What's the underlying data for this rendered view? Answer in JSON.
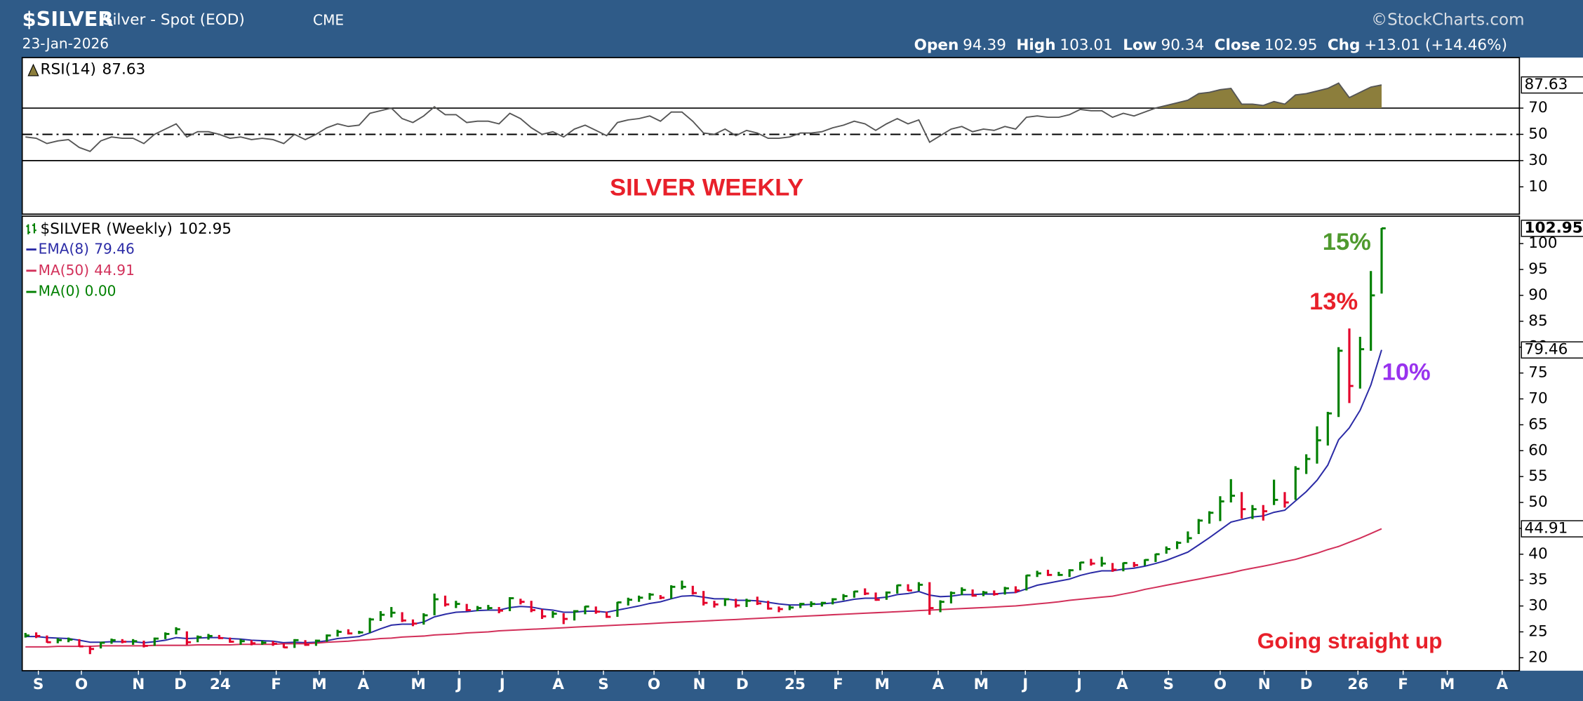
{
  "header": {
    "symbol": "$SILVER",
    "name": "Silver - Spot (EOD)",
    "exchange": "CME",
    "date": "23-Jan-2026",
    "credit": "©StockCharts.com",
    "quote": [
      {
        "label": "Open",
        "value": "94.39"
      },
      {
        "label": "High",
        "value": "103.01"
      },
      {
        "label": "Low",
        "value": "90.34"
      },
      {
        "label": "Close",
        "value": "102.95"
      },
      {
        "label": "Chg",
        "value": "+13.01 (+14.46%)"
      }
    ]
  },
  "chart_data": {
    "type": "ohlc",
    "price": {
      "name": "$SILVER (Weekly)",
      "up_color": "#008000",
      "down_color": "#e4002b",
      "high": [
        24.8,
        24.9,
        24.3,
        23.8,
        23.9,
        23.6,
        22.3,
        23.1,
        23.7,
        23.6,
        23.6,
        23.3,
        23.9,
        24.9,
        25.9,
        25.1,
        24.3,
        24.6,
        24.4,
        23.9,
        23.6,
        23.4,
        23.3,
        23.2,
        22.8,
        23.6,
        23.4,
        23.5,
        24.5,
        25.4,
        25.5,
        25.2,
        27.7,
        29.0,
        29.8,
        28.8,
        27.4,
        28.6,
        32.4,
        32.0,
        31.0,
        30.4,
        30.0,
        30.2,
        29.8,
        31.7,
        31.4,
        31.0,
        29.4,
        29.0,
        28.6,
        29.2,
        30.0,
        29.9,
        28.9,
        30.8,
        31.6,
        32.0,
        32.5,
        32.1,
        34.0,
        34.9,
        33.9,
        32.9,
        31.0,
        31.5,
        31.4,
        31.4,
        31.8,
        31.0,
        29.9,
        30.1,
        30.6,
        30.9,
        30.8,
        31.5,
        32.3,
        32.9,
        33.4,
        32.6,
        32.8,
        34.1,
        34.2,
        34.6,
        34.6,
        31.1,
        32.8,
        33.6,
        33.2,
        32.9,
        33.0,
        33.7,
        33.8,
        36.0,
        36.8,
        37.0,
        36.6,
        37.1,
        38.5,
        39.1,
        39.5,
        38.3,
        38.4,
        38.5,
        39.0,
        40.1,
        41.5,
        42.5,
        44.4,
        46.8,
        48.3,
        51.2,
        54.5,
        52.0,
        49.5,
        49.5,
        54.4,
        52.0,
        57.0,
        59.3,
        64.7,
        67.5,
        80.0,
        83.6,
        82.0,
        94.7,
        103.01
      ],
      "low": [
        23.9,
        23.8,
        22.9,
        22.8,
        23.0,
        22.1,
        20.7,
        21.8,
        22.7,
        22.8,
        22.5,
        22.0,
        22.3,
        23.6,
        24.5,
        22.5,
        23.0,
        23.5,
        23.6,
        22.9,
        22.5,
        22.4,
        22.5,
        22.3,
        21.9,
        21.9,
        22.3,
        22.3,
        23.1,
        24.1,
        24.5,
        24.6,
        24.8,
        27.1,
        27.8,
        26.9,
        26.1,
        26.4,
        28.2,
        29.9,
        29.6,
        29.0,
        29.0,
        29.2,
        28.6,
        29.0,
        30.3,
        28.8,
        27.5,
        27.7,
        26.5,
        27.2,
        28.4,
        28.5,
        27.7,
        27.9,
        30.1,
        30.8,
        31.2,
        31.3,
        31.4,
        33.2,
        32.2,
        30.1,
        29.7,
        30.0,
        29.7,
        29.8,
        30.2,
        29.3,
        28.8,
        29.2,
        29.6,
        29.8,
        29.9,
        30.3,
        31.1,
        31.6,
        32.1,
        31.0,
        31.2,
        32.4,
        32.9,
        32.9,
        28.3,
        28.8,
        30.5,
        32.1,
        31.8,
        31.9,
        32.0,
        32.2,
        32.5,
        33.0,
        35.6,
        35.8,
        35.8,
        35.6,
        36.9,
        37.8,
        37.6,
        36.6,
        36.7,
        37.5,
        37.8,
        38.5,
        40.1,
        41.0,
        42.2,
        43.9,
        45.9,
        46.4,
        50.0,
        46.9,
        46.8,
        46.5,
        49.5,
        49.0,
        50.5,
        55.5,
        57.5,
        61.0,
        66.5,
        69.2,
        72.0,
        79.3,
        90.34
      ],
      "close": [
        24.3,
        24.2,
        23.0,
        23.4,
        23.5,
        22.2,
        21.7,
        22.9,
        23.4,
        23.1,
        23.2,
        22.3,
        23.7,
        24.6,
        25.5,
        23.0,
        24.0,
        24.2,
        23.8,
        23.1,
        23.2,
        22.8,
        22.9,
        22.7,
        22.0,
        23.4,
        22.5,
        23.3,
        24.3,
        25.0,
        24.7,
        24.9,
        27.4,
        28.3,
        28.7,
        27.2,
        26.6,
        28.2,
        31.3,
        30.3,
        30.4,
        29.2,
        29.6,
        29.6,
        29.1,
        31.5,
        30.8,
        29.2,
        28.0,
        28.5,
        27.5,
        29.0,
        29.9,
        28.9,
        27.9,
        30.7,
        31.2,
        31.6,
        32.2,
        31.6,
        33.7,
        33.7,
        32.5,
        30.6,
        30.3,
        31.3,
        30.1,
        31.0,
        30.5,
        29.5,
        29.4,
        29.7,
        30.4,
        30.4,
        30.6,
        31.3,
        31.9,
        32.8,
        32.4,
        31.2,
        32.6,
        34.0,
        33.0,
        34.1,
        29.6,
        30.8,
        32.5,
        33.1,
        32.0,
        32.6,
        32.3,
        33.4,
        33.0,
        35.9,
        36.3,
        36.0,
        36.0,
        36.9,
        38.4,
        38.2,
        38.2,
        37.0,
        38.3,
        37.9,
        38.9,
        40.0,
        41.0,
        42.2,
        43.1,
        46.5,
        48.0,
        50.2,
        51.3,
        48.7,
        48.7,
        48.3,
        50.5,
        50.0,
        56.5,
        58.4,
        62.0,
        67.2,
        79.3,
        72.5,
        79.6,
        90.0,
        102.95
      ]
    },
    "series": [
      {
        "name": "EMA(8)",
        "color": "#2b2ba6",
        "values": [
          24.1,
          24.1,
          23.9,
          23.8,
          23.7,
          23.4,
          23.0,
          23.0,
          23.1,
          23.1,
          23.1,
          22.9,
          23.1,
          23.4,
          23.9,
          23.7,
          23.8,
          23.9,
          23.9,
          23.7,
          23.6,
          23.4,
          23.3,
          23.2,
          22.9,
          23.0,
          22.9,
          23.0,
          23.3,
          23.7,
          23.9,
          24.1,
          24.8,
          25.6,
          26.3,
          26.5,
          26.5,
          26.9,
          27.9,
          28.4,
          28.8,
          28.9,
          29.1,
          29.2,
          29.2,
          29.7,
          29.9,
          29.8,
          29.4,
          29.2,
          28.8,
          28.8,
          29.0,
          29.0,
          28.8,
          29.2,
          29.6,
          30.0,
          30.5,
          30.8,
          31.4,
          31.9,
          32.0,
          31.7,
          31.4,
          31.4,
          31.1,
          31.1,
          31.0,
          30.7,
          30.4,
          30.2,
          30.2,
          30.3,
          30.4,
          30.6,
          30.9,
          31.3,
          31.5,
          31.5,
          31.7,
          32.2,
          32.4,
          32.8,
          32.1,
          31.8,
          31.9,
          32.2,
          32.2,
          32.3,
          32.3,
          32.5,
          32.6,
          33.3,
          34.0,
          34.4,
          34.8,
          35.2,
          35.9,
          36.4,
          36.8,
          36.8,
          37.1,
          37.3,
          37.7,
          38.2,
          38.8,
          39.6,
          40.4,
          41.8,
          43.2,
          44.7,
          46.2,
          46.7,
          47.2,
          47.4,
          48.1,
          48.5,
          50.3,
          52.1,
          54.3,
          57.2,
          62.1,
          64.4,
          67.8,
          72.7,
          79.46
        ]
      },
      {
        "name": "MA(50)",
        "color": "#d2305a",
        "values": [
          22.1,
          22.1,
          22.1,
          22.2,
          22.2,
          22.2,
          22.2,
          22.3,
          22.3,
          22.3,
          22.3,
          22.3,
          22.4,
          22.4,
          22.4,
          22.4,
          22.5,
          22.5,
          22.5,
          22.5,
          22.6,
          22.6,
          22.6,
          22.6,
          22.7,
          22.7,
          22.7,
          22.8,
          23.0,
          23.1,
          23.2,
          23.4,
          23.5,
          23.7,
          23.8,
          24.0,
          24.1,
          24.2,
          24.4,
          24.5,
          24.6,
          24.8,
          24.9,
          25.0,
          25.2,
          25.3,
          25.4,
          25.5,
          25.6,
          25.7,
          25.8,
          25.9,
          26.0,
          26.1,
          26.2,
          26.3,
          26.4,
          26.5,
          26.6,
          26.7,
          26.8,
          26.9,
          27.0,
          27.1,
          27.2,
          27.3,
          27.4,
          27.5,
          27.6,
          27.7,
          27.8,
          27.9,
          28.0,
          28.1,
          28.2,
          28.3,
          28.4,
          28.5,
          28.6,
          28.7,
          28.8,
          28.9,
          29.0,
          29.1,
          29.2,
          29.3,
          29.4,
          29.5,
          29.6,
          29.7,
          29.8,
          29.9,
          30.0,
          30.2,
          30.4,
          30.6,
          30.8,
          31.1,
          31.3,
          31.5,
          31.7,
          31.9,
          32.3,
          32.7,
          33.2,
          33.6,
          34.0,
          34.4,
          34.8,
          35.2,
          35.6,
          36.0,
          36.4,
          36.9,
          37.3,
          37.7,
          38.1,
          38.6,
          39.0,
          39.6,
          40.2,
          40.9,
          41.5,
          42.3,
          43.1,
          44.0,
          44.91
        ]
      }
    ],
    "legend_extra": {
      "text": "MA(0) 0.00",
      "color": "#008000"
    },
    "rsi": {
      "name": "RSI(14)",
      "color": "#555555",
      "fill": "#8c7e3c",
      "values": [
        48,
        47,
        43,
        45,
        46,
        40,
        37,
        45,
        48,
        47,
        47,
        43,
        50,
        54,
        58,
        48,
        52,
        52,
        50,
        47,
        48,
        46,
        47,
        46,
        43,
        50,
        46,
        50,
        55,
        58,
        56,
        57,
        66,
        68,
        70,
        62,
        59,
        64,
        71,
        65,
        65,
        59,
        60,
        60,
        58,
        66,
        62,
        55,
        50,
        52,
        48,
        54,
        57,
        53,
        49,
        59,
        61,
        62,
        64,
        60,
        67,
        67,
        60,
        51,
        50,
        54,
        49,
        53,
        51,
        47,
        47,
        48,
        51,
        51,
        52,
        55,
        57,
        60,
        58,
        53,
        58,
        62,
        58,
        61,
        44,
        49,
        54,
        56,
        52,
        54,
        53,
        56,
        54,
        63,
        64,
        63,
        63,
        65,
        69,
        68,
        68,
        63,
        66,
        64,
        67,
        70,
        72,
        74,
        76,
        81,
        82,
        84,
        85,
        73,
        73,
        72,
        75,
        73,
        80,
        81,
        83,
        85,
        89,
        78,
        82,
        86,
        87.63
      ],
      "ylim": [
        -10.8,
        108.5
      ],
      "yticks": [
        10,
        30,
        50,
        70
      ],
      "levels": [
        {
          "value": 70,
          "style": "solid"
        },
        {
          "value": 50,
          "style": "dashdot"
        },
        {
          "value": 30,
          "style": "solid"
        }
      ]
    },
    "xlim": [
      -0.3,
      138.8
    ],
    "xticks": [
      {
        "value": 1.2,
        "label": "S"
      },
      {
        "value": 5.2,
        "label": "O"
      },
      {
        "value": 10.5,
        "label": "N"
      },
      {
        "value": 14.4,
        "label": "D"
      },
      {
        "value": 18.1,
        "label": "24"
      },
      {
        "value": 23.3,
        "label": "F"
      },
      {
        "value": 27.3,
        "label": "M"
      },
      {
        "value": 31.4,
        "label": "A"
      },
      {
        "value": 36.5,
        "label": "M"
      },
      {
        "value": 40.3,
        "label": "J"
      },
      {
        "value": 44.3,
        "label": "J"
      },
      {
        "value": 49.5,
        "label": "A"
      },
      {
        "value": 53.7,
        "label": "S"
      },
      {
        "value": 58.4,
        "label": "O"
      },
      {
        "value": 62.6,
        "label": "N"
      },
      {
        "value": 66.6,
        "label": "D"
      },
      {
        "value": 71.5,
        "label": "25"
      },
      {
        "value": 75.5,
        "label": "F"
      },
      {
        "value": 79.6,
        "label": "M"
      },
      {
        "value": 84.8,
        "label": "A"
      },
      {
        "value": 88.8,
        "label": "M"
      },
      {
        "value": 92.9,
        "label": "J"
      },
      {
        "value": 97.9,
        "label": "J"
      },
      {
        "value": 101.9,
        "label": "A"
      },
      {
        "value": 106.2,
        "label": "S"
      },
      {
        "value": 111.0,
        "label": "O"
      },
      {
        "value": 115.1,
        "label": "N"
      },
      {
        "value": 119.0,
        "label": "D"
      },
      {
        "value": 123.8,
        "label": "26"
      },
      {
        "value": 128.0,
        "label": "F"
      },
      {
        "value": 132.1,
        "label": "M"
      },
      {
        "value": 137.2,
        "label": "A"
      }
    ],
    "ylim": [
      17.5,
      105.3
    ],
    "yticks": [
      20,
      25,
      30,
      35,
      40,
      45,
      50,
      55,
      60,
      65,
      70,
      75,
      80,
      85,
      90,
      95,
      100
    ],
    "grid": false,
    "annotations": [
      {
        "text": "SILVER WEEKLY",
        "color": "#e8202a"
      },
      {
        "text": "15%",
        "color": "#4f9a2e"
      },
      {
        "text": "13%",
        "color": "#e8202a"
      },
      {
        "text": "10%",
        "color": "#9933ee"
      },
      {
        "text": "Going straight up",
        "color": "#e8202a"
      }
    ]
  }
}
